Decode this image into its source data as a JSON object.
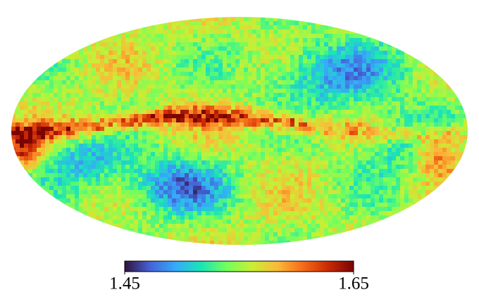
{
  "chart_data": {
    "type": "mollweide",
    "colormap": [
      "#30123b",
      "#4662d7",
      "#36aaf9",
      "#1ae4b6",
      "#72fe5e",
      "#c8ef34",
      "#faba39",
      "#f66b19",
      "#ca2a04",
      "#7a0403"
    ],
    "clim": [
      1.45,
      1.65
    ],
    "cticks": [
      1.45,
      1.65
    ]
  }
}
